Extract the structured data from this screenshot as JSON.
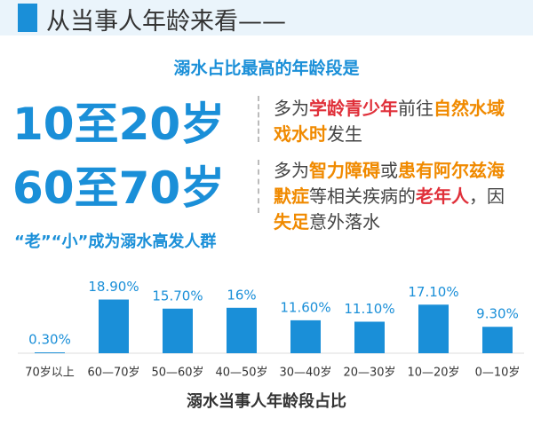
{
  "header": {
    "title": "从当事人年龄来看——"
  },
  "subtitle": "溺水占比最高的年龄段是",
  "highlights": [
    {
      "age": "10至20岁",
      "segments": [
        {
          "text": "多为",
          "color": "#444444"
        },
        {
          "text": "学龄青少年",
          "color": "#e0303a"
        },
        {
          "text": "前往",
          "color": "#444444"
        },
        {
          "text": "自然水域戏水时",
          "color": "#f08a00"
        },
        {
          "text": "发生",
          "color": "#444444"
        }
      ]
    },
    {
      "age": "60至70岁",
      "segments": [
        {
          "text": "多为",
          "color": "#444444"
        },
        {
          "text": "智力障碍",
          "color": "#f08a00"
        },
        {
          "text": "或",
          "color": "#444444"
        },
        {
          "text": "患有阿尔兹海默症",
          "color": "#f08a00"
        },
        {
          "text": "等相关疾病的",
          "color": "#444444"
        },
        {
          "text": "老年人",
          "color": "#e0303a"
        },
        {
          "text": "，因",
          "color": "#444444"
        },
        {
          "text": "失足",
          "color": "#f08a00"
        },
        {
          "text": "意外落水",
          "color": "#444444"
        }
      ]
    }
  ],
  "group_note": "“老”“小”成为溺水高发人群",
  "chart_data": {
    "type": "bar",
    "color": "#1a8fd8",
    "x_label": "溺水当事人年龄段占比",
    "categories": [
      "70岁以上",
      "60—70岁",
      "50—60岁",
      "40—50岁",
      "30—40岁",
      "20—30岁",
      "10—20岁",
      "0—10岁"
    ],
    "values": [
      0.3,
      18.9,
      15.7,
      16,
      11.6,
      11.1,
      17.1,
      9.3
    ],
    "value_labels": [
      "0.30%",
      "18.90%",
      "15.70%",
      "16%",
      "11.60%",
      "11.10%",
      "17.10%",
      "9.30%"
    ]
  }
}
